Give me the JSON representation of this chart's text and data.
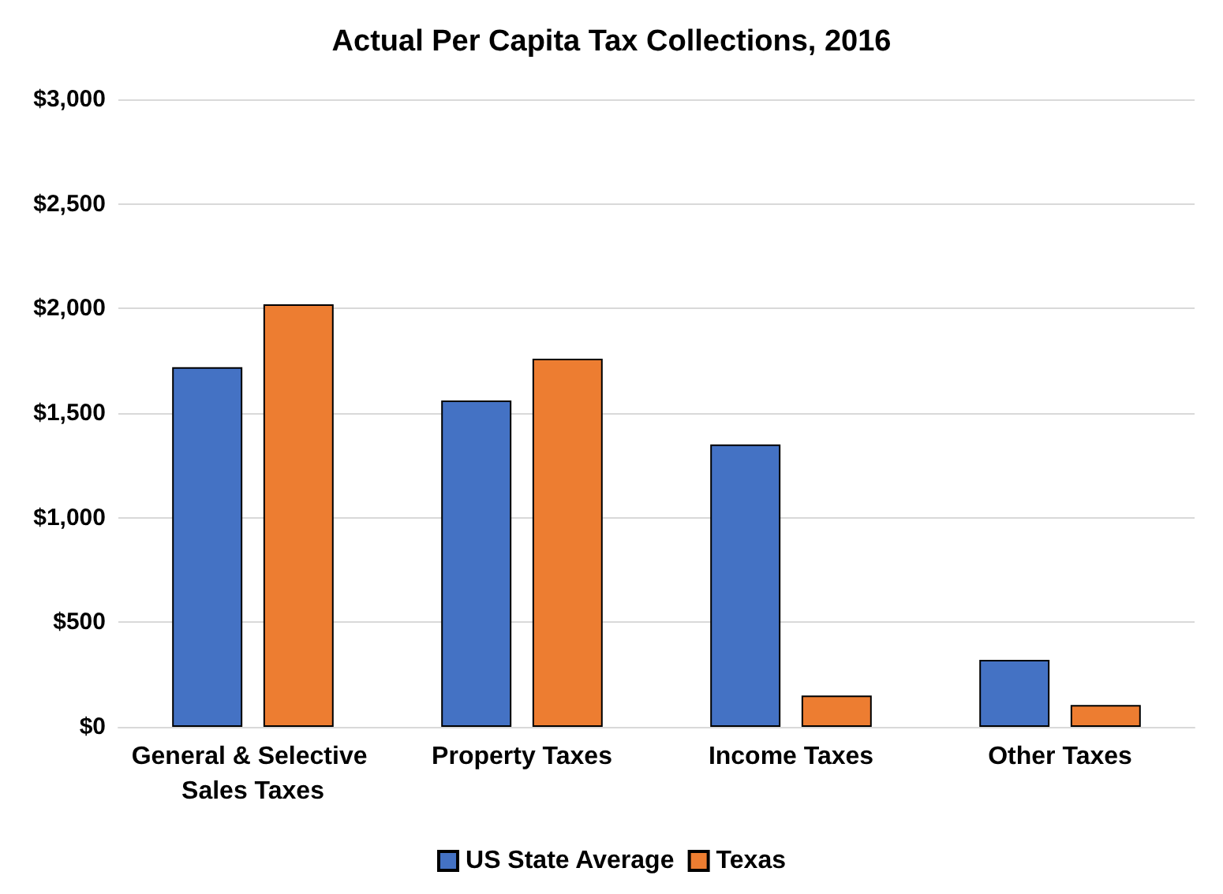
{
  "chart_data": {
    "type": "bar",
    "title": "Actual Per Capita Tax Collections, 2016",
    "categories": [
      "General & Selective Sales Taxes",
      "Property Taxes",
      "Income Taxes",
      "Other Taxes"
    ],
    "series": [
      {
        "name": "US State Average",
        "color": "#4472c4",
        "values": [
          1720,
          1560,
          1350,
          320
        ]
      },
      {
        "name": "Texas",
        "color": "#ed7d31",
        "values": [
          2020,
          1760,
          150,
          105
        ]
      }
    ],
    "ylim": [
      0,
      3000
    ],
    "yticks": [
      {
        "value": 0,
        "label": "$0"
      },
      {
        "value": 500,
        "label": "$500"
      },
      {
        "value": 1000,
        "label": "$1,000"
      },
      {
        "value": 1500,
        "label": "$1,500"
      },
      {
        "value": 2000,
        "label": "$2,000"
      },
      {
        "value": 2500,
        "label": "$2,500"
      },
      {
        "value": 3000,
        "label": "$3,000"
      }
    ],
    "grid": "y",
    "legend": "bottom"
  }
}
